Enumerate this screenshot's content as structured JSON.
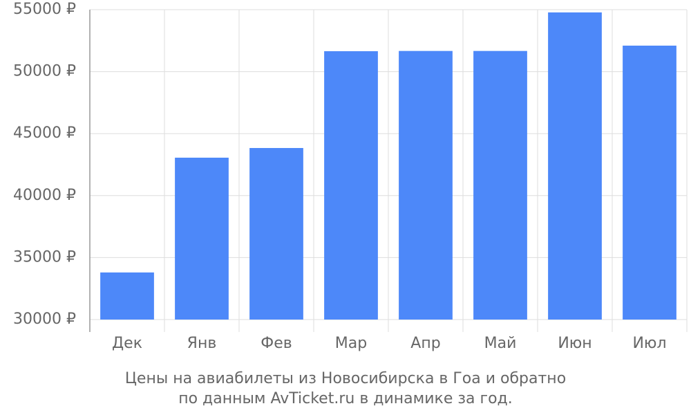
{
  "chart_data": {
    "type": "bar",
    "title": [
      "Цены на авиабилеты из Новосибирска в Гоа и обратно",
      "по данным AvTicket.ru в динамике за год."
    ],
    "categories": [
      "Дек",
      "Янв",
      "Фев",
      "Мар",
      "Апр",
      "Май",
      "Июн",
      "Июл"
    ],
    "values": [
      33800,
      43060,
      43840,
      51650,
      51670,
      51670,
      54780,
      52100
    ],
    "color": "#4d88f9",
    "ylim": [
      30000,
      55000
    ],
    "yticks": [
      {
        "value": 30000,
        "label": "30000 ₽"
      },
      {
        "value": 35000,
        "label": "35000 ₽"
      },
      {
        "value": 40000,
        "label": "40000 ₽"
      },
      {
        "value": 45000,
        "label": "45000 ₽"
      },
      {
        "value": 50000,
        "label": "50000 ₽"
      },
      {
        "value": 55000,
        "label": "55000 ₽"
      }
    ],
    "grid": true
  }
}
